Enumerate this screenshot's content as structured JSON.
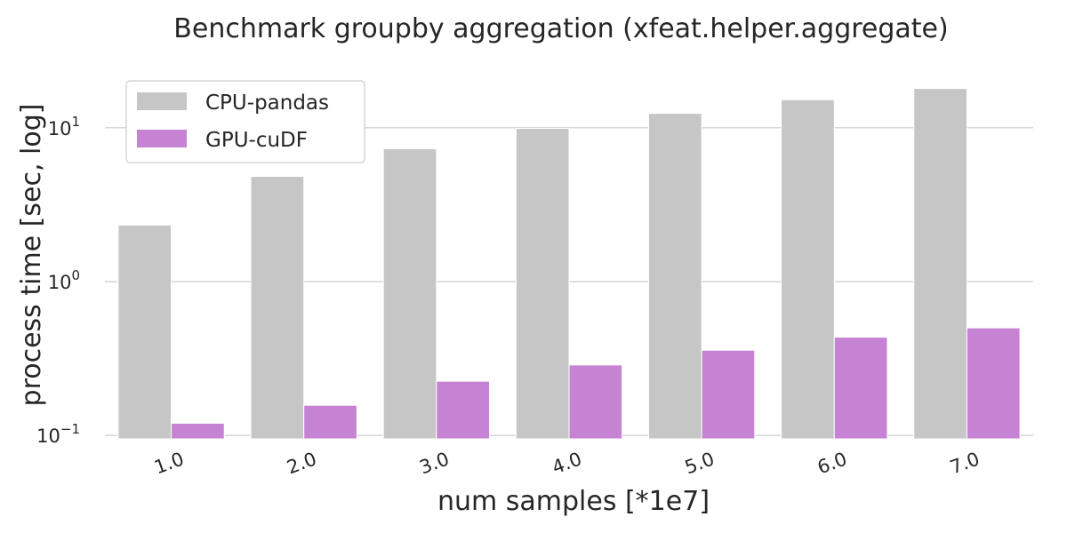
{
  "chart_data": {
    "type": "bar",
    "title": "Benchmark groupby aggregation (xfeat.helper.aggregate)",
    "xlabel": "num samples [*1e7]",
    "ylabel": "process time [sec, log]",
    "yscale": "log",
    "ylim": [
      0.095,
      21
    ],
    "yticks": [
      {
        "value": 0.1,
        "base": "10",
        "exp": "−1"
      },
      {
        "value": 1,
        "base": "10",
        "exp": "0"
      },
      {
        "value": 10,
        "base": "10",
        "exp": "1"
      }
    ],
    "categories": [
      "1.0",
      "2.0",
      "3.0",
      "4.0",
      "5.0",
      "6.0",
      "7.0"
    ],
    "series": [
      {
        "name": "CPU-pandas",
        "color": "#c6c6c6",
        "values": [
          2.33,
          4.83,
          7.3,
          9.9,
          12.4,
          15.2,
          18.0
        ]
      },
      {
        "name": "GPU-cuDF",
        "color": "#c682d3",
        "values": [
          0.12,
          0.157,
          0.225,
          0.287,
          0.358,
          0.435,
          0.5
        ]
      }
    ],
    "grid": true,
    "legend_position": "top-left"
  }
}
